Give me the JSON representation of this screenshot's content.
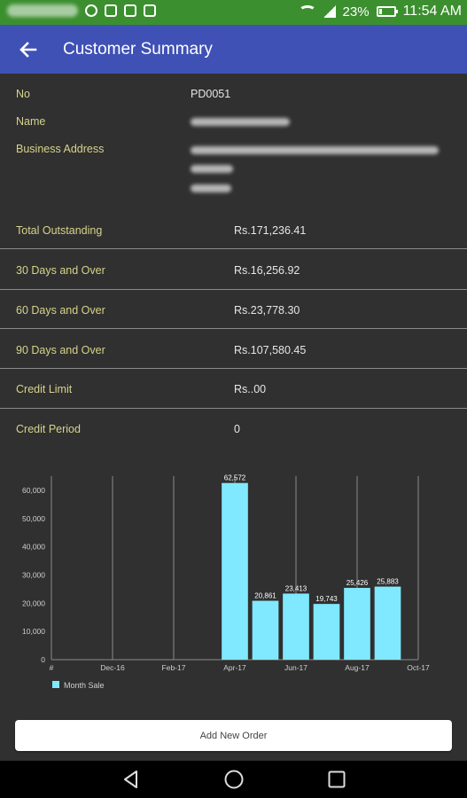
{
  "status_bar": {
    "battery": "23%",
    "battery_level": 0.23,
    "time": "11:54 AM"
  },
  "app_bar": {
    "title": "Customer Summary",
    "back_icon": "arrow-left-icon"
  },
  "customer": {
    "no_label": "No",
    "no_value": "PD0051",
    "name_label": "Name",
    "address_label": "Business Address"
  },
  "summary": [
    {
      "label": "Total Outstanding",
      "value": "Rs.171,236.41"
    },
    {
      "label": "30 Days and Over",
      "value": "Rs.16,256.92"
    },
    {
      "label": "60 Days and Over",
      "value": "Rs.23,778.30"
    },
    {
      "label": "90 Days and Over",
      "value": "Rs.107,580.45"
    },
    {
      "label": "Credit Limit",
      "value": "Rs..00"
    },
    {
      "label": "Credit Period",
      "value": "0"
    }
  ],
  "chart_data": {
    "type": "bar",
    "x_ticks": [
      "#",
      "Dec-16",
      "Feb-17",
      "Apr-17",
      "Jun-17",
      "Aug-17",
      "Oct-17"
    ],
    "y_ticks": [
      "0",
      "10,000",
      "20,000",
      "30,000",
      "40,000",
      "50,000",
      "60,000"
    ],
    "ylim": [
      0,
      65000
    ],
    "bars": [
      {
        "x": "Apr-17",
        "value": 62572,
        "label": "62,572"
      },
      {
        "x": "May-17",
        "value": 20861,
        "label": "20,861"
      },
      {
        "x": "Jun-17",
        "value": 23413,
        "label": "23,413"
      },
      {
        "x": "Jul-17",
        "value": 19743,
        "label": "19,743"
      },
      {
        "x": "Aug-17",
        "value": 25426,
        "label": "25,426"
      },
      {
        "x": "Sep-17",
        "value": 25883,
        "label": "25,883"
      }
    ],
    "legend": {
      "label": "Month Sale",
      "position": "bottom-left"
    },
    "bar_color": "#80e8ff",
    "grid_color": "#8a8a8a",
    "grid": true
  },
  "actions": {
    "add_order_label": "Add New Order"
  },
  "colors": {
    "status_bar": "#3c8f2f",
    "app_bar": "#3f51b5",
    "background": "#303030",
    "label": "#d6d38a"
  }
}
